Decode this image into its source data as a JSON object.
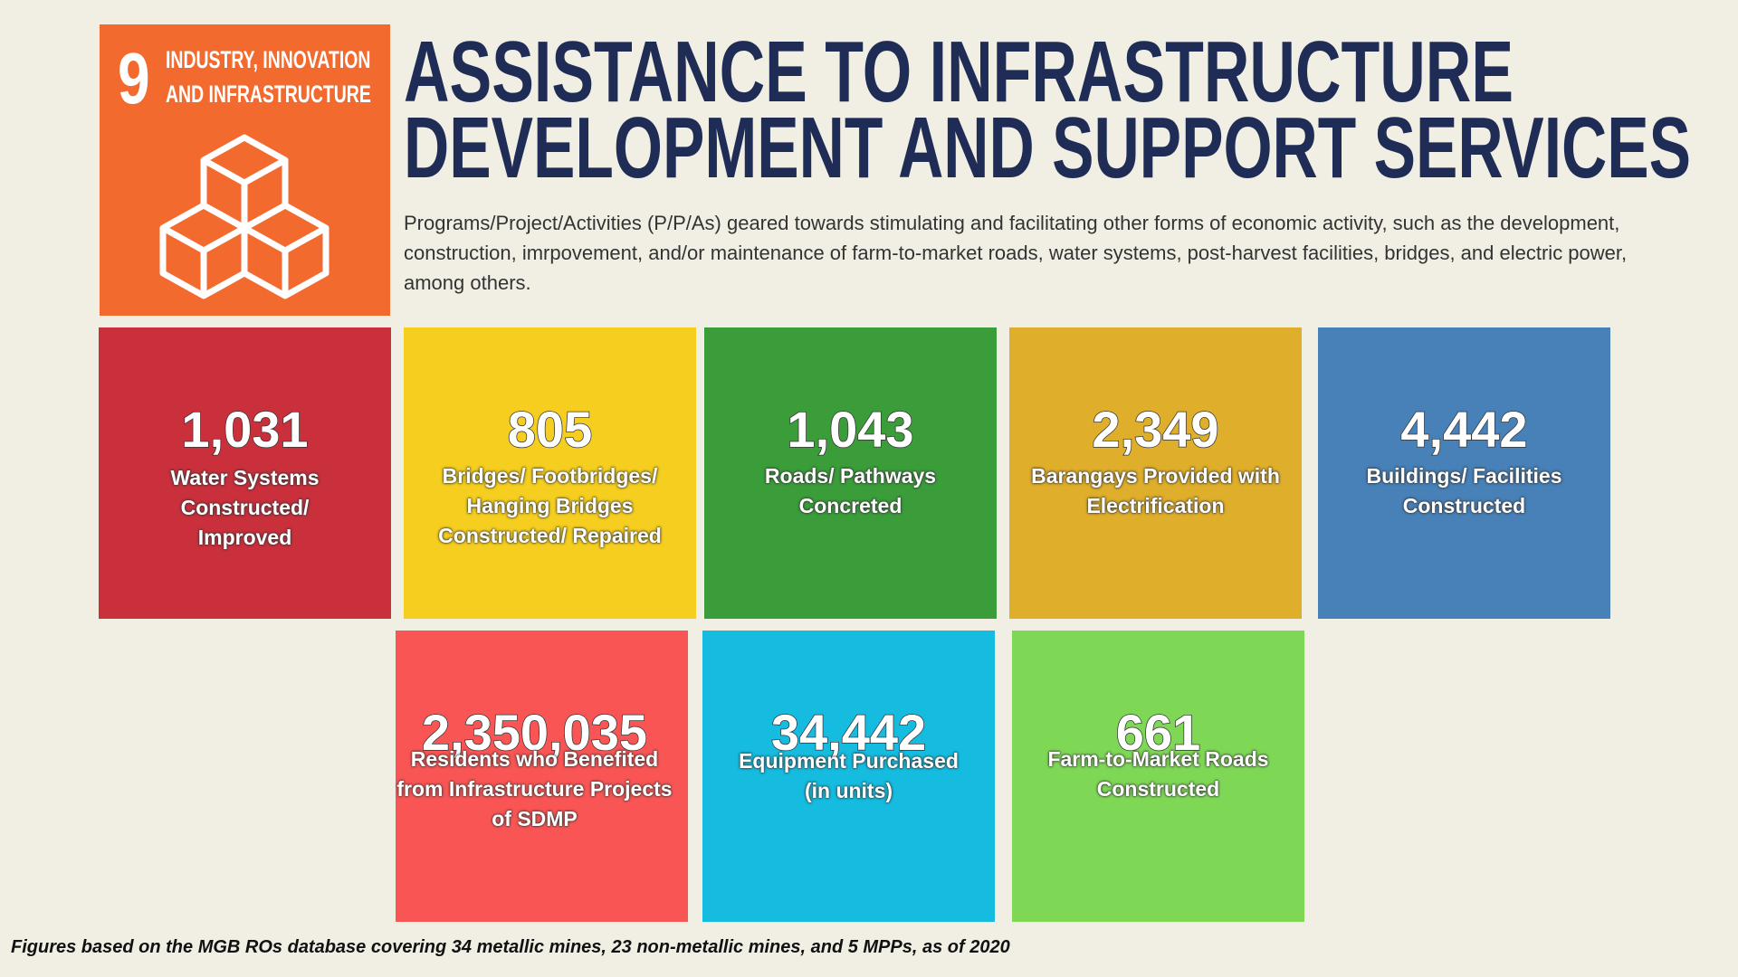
{
  "badge": {
    "number": "9",
    "lines": [
      "INDUSTRY, INNOVATION",
      "AND INFRASTRUCTURE"
    ]
  },
  "title": [
    "ASSISTANCE TO INFRASTRUCTURE",
    "DEVELOPMENT AND SUPPORT SERVICES"
  ],
  "description": "Programs/Project/Activities (P/P/As) geared towards stimulating and facilitating other forms of economic activity, such as the development, construction, imrpovement, and/or maintenance of farm-to-market roads, water systems, post-harvest facilities, bridges, and electric power, among others.",
  "tiles": [
    {
      "value": "1,031",
      "label": "Water Systems Constructed/ Improved"
    },
    {
      "value": "805",
      "label": "Bridges/ Footbridges/ Hanging Bridges Constructed/ Repaired"
    },
    {
      "value": "1,043",
      "label": "Roads/ Pathways Concreted"
    },
    {
      "value": "2,349",
      "label": "Barangays Provided with Electrification"
    },
    {
      "value": "4,442",
      "label": "Buildings/ Facilities Constructed"
    },
    {
      "value": "2,350,035",
      "label": "Residents who Benefited from Infrastructure Projects of SDMP"
    },
    {
      "value": "34,442",
      "label": "Equipment Purchased (in units)"
    },
    {
      "value": "661",
      "label": "Farm-to-Market Roads Constructed"
    }
  ],
  "footnote": "Figures based on the MGB ROs database covering 34 metallic mines, 23 non-metallic mines, and 5 MPPs, as of 2020"
}
